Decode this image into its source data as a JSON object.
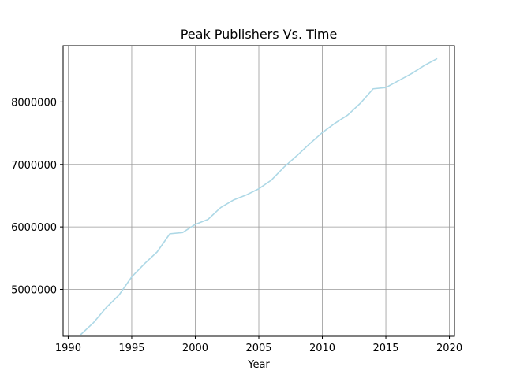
{
  "chart_data": {
    "type": "line",
    "title": "Peak Publishers Vs. Time",
    "xlabel": "Year",
    "ylabel": "",
    "xlim": [
      1989.6,
      2020.4
    ],
    "ylim": [
      4250000,
      8900000
    ],
    "xticks": [
      1990,
      1995,
      2000,
      2005,
      2010,
      2015,
      2020
    ],
    "yticks": [
      5000000,
      6000000,
      7000000,
      8000000
    ],
    "grid": true,
    "line_color": "#add8e6",
    "grid_color": "#999999",
    "series": [
      {
        "x": [
          1991,
          1992,
          1993,
          1994,
          1995,
          1996,
          1997,
          1998,
          1999,
          2000,
          2001,
          2002,
          2003,
          2004,
          2005,
          2006,
          2007,
          2008,
          2009,
          2010,
          2011,
          2012,
          2013,
          2014,
          2015,
          2016,
          2017,
          2018,
          2019
        ],
        "y": [
          4280000,
          4470000,
          4710000,
          4910000,
          5200000,
          5410000,
          5600000,
          5890000,
          5910000,
          6040000,
          6120000,
          6310000,
          6430000,
          6510000,
          6610000,
          6750000,
          6960000,
          7140000,
          7330000,
          7510000,
          7660000,
          7790000,
          7980000,
          8210000,
          8230000,
          8340000,
          8450000,
          8580000,
          8690000
        ]
      }
    ]
  }
}
